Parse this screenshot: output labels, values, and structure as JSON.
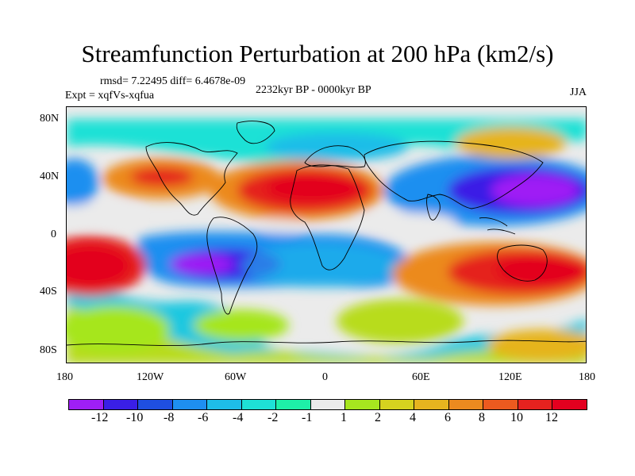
{
  "title": "Streamfunction Perturbation at 200 hPa (km2/s)",
  "stats": "rmsd= 7.22495 diff= 6.4678e-09",
  "experiment": "Expt = xqfVs-xqfua",
  "period": "2232kyr BP - 0000kyr BP",
  "season": "JJA",
  "map": {
    "lat_labels": [
      "80N",
      "40N",
      "0",
      "40S",
      "80S"
    ],
    "lon_labels": [
      "180",
      "120W",
      "60W",
      "0",
      "60E",
      "120E",
      "180"
    ]
  },
  "colorbar": {
    "labels": [
      "-12",
      "-10",
      "-8",
      "-6",
      "-4",
      "-2",
      "-1",
      "1",
      "2",
      "4",
      "6",
      "8",
      "10",
      "12"
    ],
    "colors": [
      "#9f1ff5",
      "#3a1fe6",
      "#1f4fe0",
      "#1e8ff0",
      "#1ebde8",
      "#1ee1d6",
      "#1ef0a8",
      "#ebebeb",
      "#a6e61f",
      "#d6d21f",
      "#e6b41f",
      "#ec8a1f",
      "#ec5a1f",
      "#e5221f",
      "#e3001f"
    ]
  },
  "palette": {
    "neg_strong": "#7a1fe0",
    "neg_mid": "#1f6fe6",
    "neg_light": "#1ec8e0",
    "neutral": "#ebebeb",
    "pos_light": "#b8dc1f",
    "pos_mid": "#eea51f",
    "pos_strong": "#e8221f"
  }
}
